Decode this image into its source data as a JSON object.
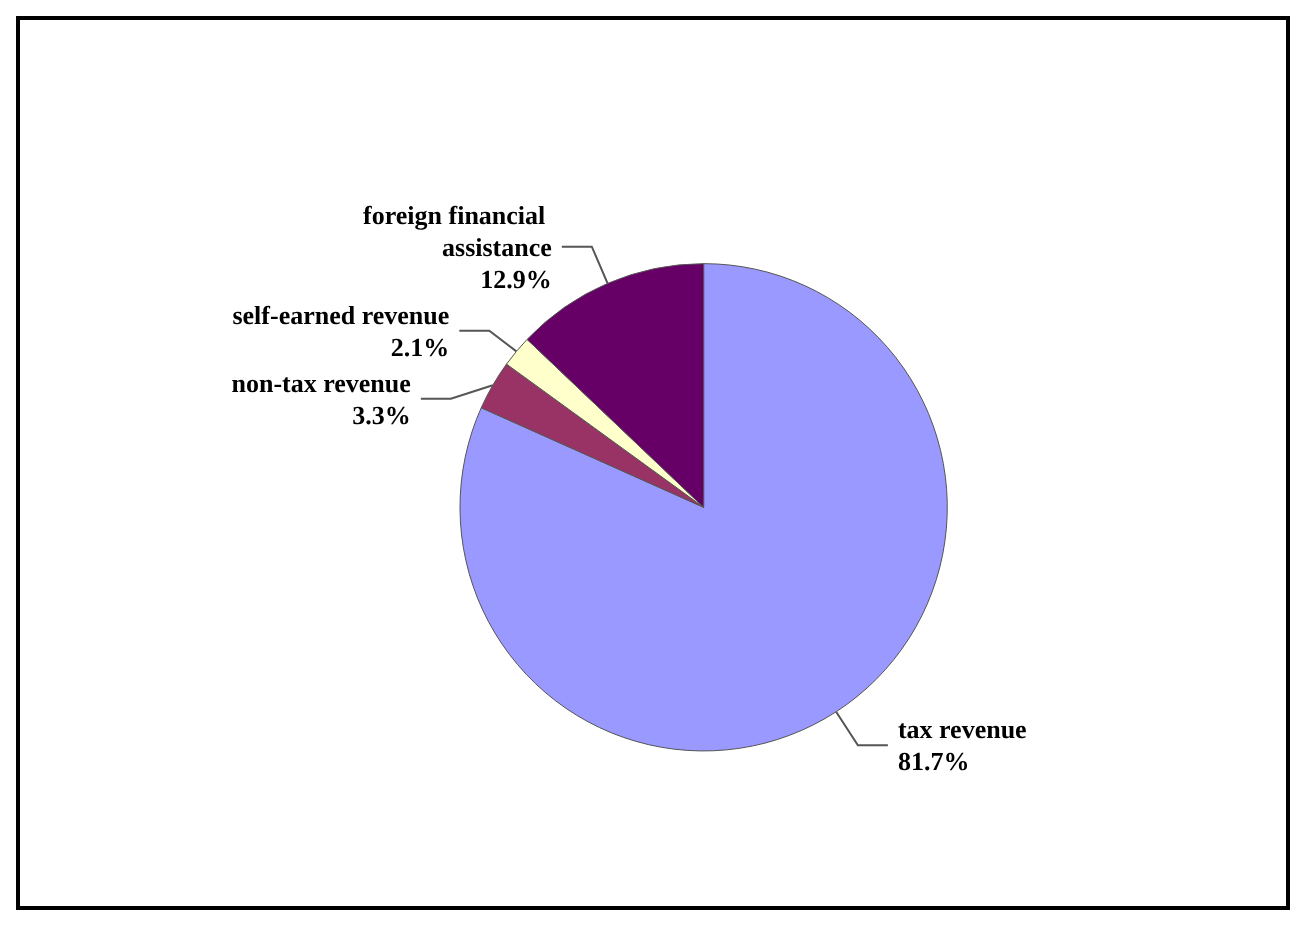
{
  "chart_data": {
    "type": "pie",
    "categories": [
      "tax revenue",
      "non-tax revenue",
      "self-earned revenue",
      "foreign financial assistance"
    ],
    "values": [
      81.7,
      3.3,
      2.1,
      12.9
    ],
    "colors": [
      "#9999ff",
      "#993366",
      "#ffffcc",
      "#660066"
    ],
    "value_labels": [
      "81.7%",
      "3.3%",
      "2.1%",
      "12.9%"
    ]
  }
}
